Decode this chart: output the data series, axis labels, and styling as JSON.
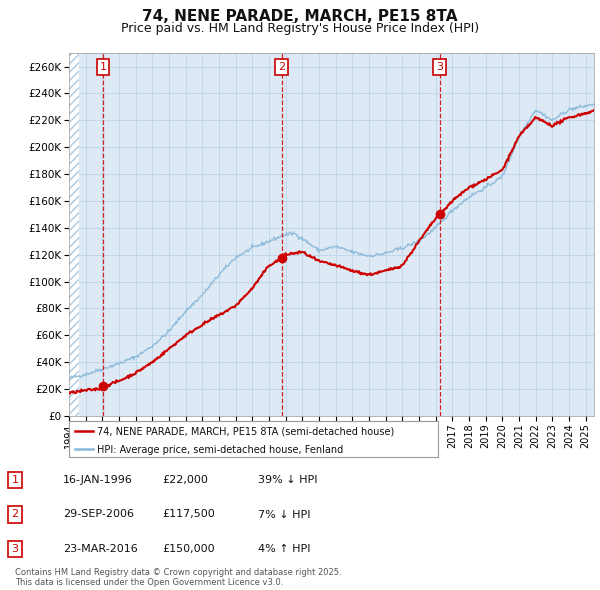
{
  "title": "74, NENE PARADE, MARCH, PE15 8TA",
  "subtitle": "Price paid vs. HM Land Registry's House Price Index (HPI)",
  "title_fontsize": 11,
  "subtitle_fontsize": 9,
  "background_color": "#ddeaf5",
  "grid_color": "#b8d0e8",
  "sale_color": "#cc0000",
  "hpi_color": "#88b8d8",
  "vline_color": "#cc0000",
  "ylim": [
    0,
    270000
  ],
  "yticks": [
    0,
    20000,
    40000,
    60000,
    80000,
    100000,
    120000,
    140000,
    160000,
    180000,
    200000,
    220000,
    240000,
    260000
  ],
  "ytick_labels": [
    "£0",
    "£20K",
    "£40K",
    "£60K",
    "£80K",
    "£100K",
    "£120K",
    "£140K",
    "£160K",
    "£180K",
    "£200K",
    "£220K",
    "£240K",
    "£260K"
  ],
  "sale_prices": [
    22000,
    117500,
    150000
  ],
  "sale_labels": [
    "1",
    "2",
    "3"
  ],
  "vline_x": [
    1996.04,
    2006.75,
    2016.23
  ],
  "legend_sale": "74, NENE PARADE, MARCH, PE15 8TA (semi-detached house)",
  "legend_hpi": "HPI: Average price, semi-detached house, Fenland",
  "table_rows": [
    [
      "1",
      "16-JAN-1996",
      "£22,000",
      "39% ↓ HPI"
    ],
    [
      "2",
      "29-SEP-2006",
      "£117,500",
      "7% ↓ HPI"
    ],
    [
      "3",
      "23-MAR-2016",
      "£150,000",
      "4% ↑ HPI"
    ]
  ],
  "footer": "Contains HM Land Registry data © Crown copyright and database right 2025.\nThis data is licensed under the Open Government Licence v3.0.",
  "xmin": 1994.0,
  "xmax": 2025.5
}
